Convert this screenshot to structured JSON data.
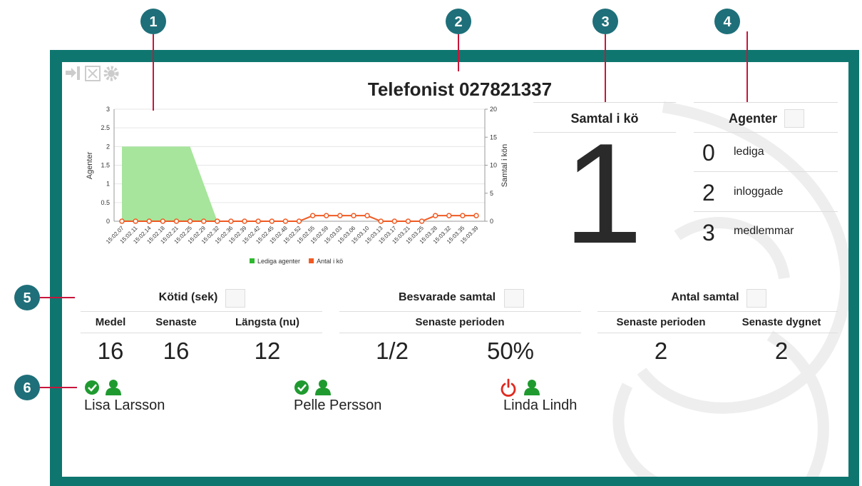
{
  "header": {
    "title": "Telefonist 027821337"
  },
  "callouts": [
    "1",
    "2",
    "3",
    "4",
    "5",
    "6"
  ],
  "chart_data": {
    "type": "line",
    "categories": [
      "15:02.07",
      "15:02.11",
      "15:02.14",
      "15:02.18",
      "15:02.21",
      "15:02.25",
      "15:02.29",
      "15:02.32",
      "15:02.36",
      "15:02.39",
      "15:02.42",
      "15:02.45",
      "15:02.48",
      "15:02.52",
      "15:02.55",
      "15:02.59",
      "15:03.03",
      "15:03.06",
      "15:03.10",
      "15:03.13",
      "15:03.17",
      "15:03.21",
      "15:03.25",
      "15:03.28",
      "15:03.32",
      "15:03.35",
      "15:03.39"
    ],
    "series": [
      {
        "name": "Lediga agenter",
        "type": "area",
        "color": "#2db82d",
        "fill": "#a6e59b",
        "values": [
          2,
          2,
          2,
          2,
          2,
          2,
          1,
          0,
          0,
          0,
          0,
          0,
          0,
          0,
          0,
          0,
          0,
          0,
          0,
          0,
          0,
          0,
          0,
          0,
          0,
          0,
          0
        ]
      },
      {
        "name": "Antal i kö",
        "type": "line",
        "color": "#f05a22",
        "axis": "y2",
        "values": [
          0,
          0,
          0,
          0,
          0,
          0,
          0,
          0,
          0,
          0,
          0,
          0,
          0,
          0,
          1,
          1,
          1,
          1,
          1,
          0,
          0,
          0,
          0,
          1,
          1,
          1,
          1
        ]
      }
    ],
    "ylabel": "Agenter",
    "y2label": "Samtal i kön",
    "ylim": [
      0,
      3
    ],
    "yticks": [
      0,
      0.5,
      1,
      1.5,
      2,
      2.5,
      3
    ],
    "y2lim": [
      0,
      20
    ],
    "y2ticks": [
      0,
      5,
      10,
      15,
      20
    ],
    "grid": true,
    "legend": "bottom"
  },
  "queue": {
    "title": "Samtal i kö",
    "value": 1
  },
  "agents_panel": {
    "title": "Agenter",
    "rows": [
      {
        "value": 0,
        "label": "lediga"
      },
      {
        "value": 2,
        "label": "inloggade"
      },
      {
        "value": 3,
        "label": "medlemmar"
      }
    ]
  },
  "stats": [
    {
      "title": "Kötid (sek)",
      "columns": [
        "Medel",
        "Senaste",
        "Längsta (nu)"
      ],
      "values": [
        16,
        16,
        12
      ]
    },
    {
      "title": "Besvarade samtal",
      "columns": [
        "Senaste perioden"
      ],
      "values": [
        "1/2",
        "50%"
      ]
    },
    {
      "title": "Antal samtal",
      "columns": [
        "Senaste perioden",
        "Senaste dygnet"
      ],
      "values": [
        2,
        2
      ]
    }
  ],
  "agents": [
    "Lisa Larsson",
    "Pelle Persson",
    "Linda Lindh"
  ]
}
